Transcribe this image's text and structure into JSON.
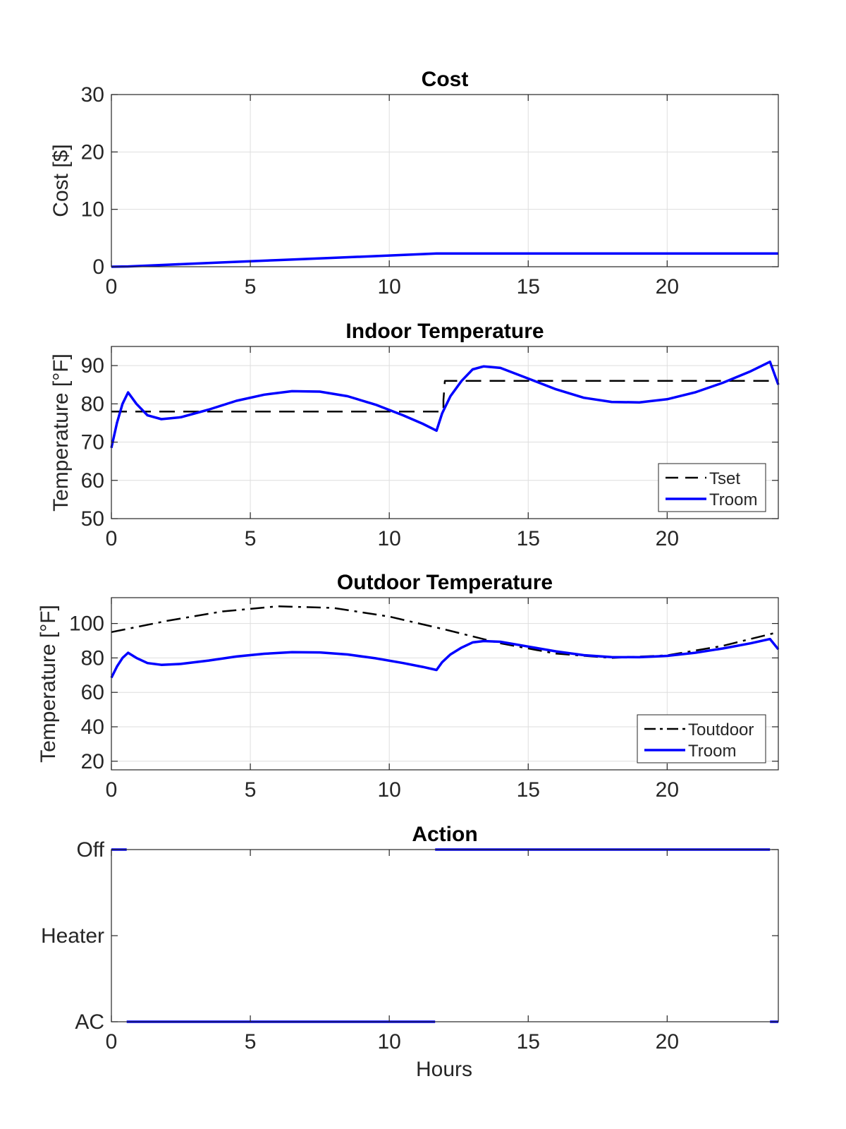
{
  "figure": {
    "xlabel_bottom": "Hours"
  },
  "chart_data": [
    {
      "type": "line",
      "title": "Cost",
      "xlabel": "",
      "ylabel": "Cost [$]",
      "xlim": [
        0,
        24
      ],
      "ylim": [
        0,
        30
      ],
      "xticks": [
        "0",
        "5",
        "10",
        "15",
        "20"
      ],
      "yticks": [
        "0",
        "10",
        "20",
        "30"
      ],
      "grid": true,
      "legend": null,
      "series": [
        {
          "color": "#0000FF",
          "style": "solid",
          "points": [
            [
              0,
              0
            ],
            [
              0.6,
              0.05
            ],
            [
              2,
              0.35
            ],
            [
              4,
              0.75
            ],
            [
              6,
              1.15
            ],
            [
              8,
              1.55
            ],
            [
              10,
              1.95
            ],
            [
              11.7,
              2.3
            ],
            [
              12,
              2.3
            ],
            [
              16,
              2.3
            ],
            [
              20,
              2.3
            ],
            [
              24,
              2.3
            ]
          ]
        }
      ]
    },
    {
      "type": "line",
      "title": "Indoor Temperature",
      "xlabel": "",
      "ylabel": "Temperature [°F]",
      "xlim": [
        0,
        24
      ],
      "ylim": [
        50,
        95
      ],
      "xticks": [
        "0",
        "5",
        "10",
        "15",
        "20"
      ],
      "yticks": [
        "50",
        "60",
        "70",
        "80",
        "90"
      ],
      "grid": true,
      "legend": "bottom-right",
      "series": [
        {
          "name": "Tset",
          "color": "#000000",
          "style": "dashed",
          "points": [
            [
              0,
              78
            ],
            [
              11.95,
              78
            ],
            [
              11.95,
              81
            ],
            [
              12.0,
              86
            ],
            [
              24,
              86
            ]
          ]
        },
        {
          "name": "Troom",
          "color": "#0000FF",
          "style": "solid",
          "points": [
            [
              0,
              68.5
            ],
            [
              0.2,
              75
            ],
            [
              0.4,
              80
            ],
            [
              0.6,
              83
            ],
            [
              0.9,
              80
            ],
            [
              1.3,
              77
            ],
            [
              1.8,
              76
            ],
            [
              2.5,
              76.5
            ],
            [
              3.5,
              78.5
            ],
            [
              4.5,
              80.8
            ],
            [
              5.5,
              82.4
            ],
            [
              6.5,
              83.3
            ],
            [
              7.5,
              83.2
            ],
            [
              8.5,
              82
            ],
            [
              9.5,
              79.8
            ],
            [
              10.5,
              77
            ],
            [
              11.2,
              74.8
            ],
            [
              11.7,
              73
            ],
            [
              11.9,
              77.5
            ],
            [
              12.2,
              82
            ],
            [
              12.6,
              86
            ],
            [
              13.0,
              89
            ],
            [
              13.4,
              89.8
            ],
            [
              14,
              89.4
            ],
            [
              15,
              86.6
            ],
            [
              16,
              83.8
            ],
            [
              17,
              81.6
            ],
            [
              18,
              80.5
            ],
            [
              19,
              80.4
            ],
            [
              20,
              81.2
            ],
            [
              21,
              83
            ],
            [
              22,
              85.5
            ],
            [
              23,
              88.5
            ],
            [
              23.7,
              91
            ],
            [
              24,
              85
            ]
          ]
        }
      ]
    },
    {
      "type": "line",
      "title": "Outdoor Temperature",
      "xlabel": "",
      "ylabel": "Temperature [°F]",
      "xlim": [
        0,
        24
      ],
      "ylim": [
        15,
        115
      ],
      "xticks": [
        "0",
        "5",
        "10",
        "15",
        "20"
      ],
      "yticks": [
        "20",
        "40",
        "60",
        "80",
        "100"
      ],
      "grid": true,
      "legend": "bottom-right",
      "series": [
        {
          "name": "Toutdoor",
          "color": "#000000",
          "style": "dashdot",
          "points": [
            [
              0,
              95
            ],
            [
              2,
              101.5
            ],
            [
              4,
              107
            ],
            [
              6,
              110
            ],
            [
              8,
              109
            ],
            [
              10,
              104
            ],
            [
              12,
              96.5
            ],
            [
              14,
              88.5
            ],
            [
              16,
              82.5
            ],
            [
              18,
              80
            ],
            [
              20,
              81.5
            ],
            [
              22,
              87
            ],
            [
              24,
              95
            ]
          ]
        },
        {
          "name": "Troom",
          "color": "#0000FF",
          "style": "solid",
          "points": [
            [
              0,
              68.5
            ],
            [
              0.2,
              75
            ],
            [
              0.4,
              80
            ],
            [
              0.6,
              83
            ],
            [
              0.9,
              80
            ],
            [
              1.3,
              77
            ],
            [
              1.8,
              76
            ],
            [
              2.5,
              76.5
            ],
            [
              3.5,
              78.5
            ],
            [
              4.5,
              80.8
            ],
            [
              5.5,
              82.4
            ],
            [
              6.5,
              83.3
            ],
            [
              7.5,
              83.2
            ],
            [
              8.5,
              82
            ],
            [
              9.5,
              79.8
            ],
            [
              10.5,
              77
            ],
            [
              11.2,
              74.8
            ],
            [
              11.7,
              73
            ],
            [
              11.9,
              77.5
            ],
            [
              12.2,
              82
            ],
            [
              12.6,
              86
            ],
            [
              13.0,
              89
            ],
            [
              13.4,
              89.8
            ],
            [
              14,
              89.4
            ],
            [
              15,
              86.6
            ],
            [
              16,
              83.8
            ],
            [
              17,
              81.6
            ],
            [
              18,
              80.5
            ],
            [
              19,
              80.4
            ],
            [
              20,
              81.2
            ],
            [
              21,
              83
            ],
            [
              22,
              85.5
            ],
            [
              23,
              88.5
            ],
            [
              23.7,
              91
            ],
            [
              24,
              85
            ]
          ]
        }
      ]
    },
    {
      "type": "line",
      "title": "Action",
      "xlabel": "Hours",
      "ylabel": "",
      "xlim": [
        0,
        24
      ],
      "ylim": [
        0,
        2
      ],
      "xticks": [
        "0",
        "5",
        "10",
        "15",
        "20"
      ],
      "yticks": [
        "AC",
        "Heater",
        "Off"
      ],
      "grid": false,
      "legend": null,
      "series": [
        {
          "color": "#0000FF",
          "style": "solid",
          "segments": [
            [
              [
                0,
                2
              ],
              [
                0.55,
                2
              ]
            ],
            [
              [
                0.55,
                0
              ],
              [
                11.65,
                0
              ]
            ],
            [
              [
                11.65,
                2
              ],
              [
                23.7,
                2
              ]
            ],
            [
              [
                23.7,
                0
              ],
              [
                24,
                0
              ]
            ]
          ]
        }
      ]
    }
  ]
}
